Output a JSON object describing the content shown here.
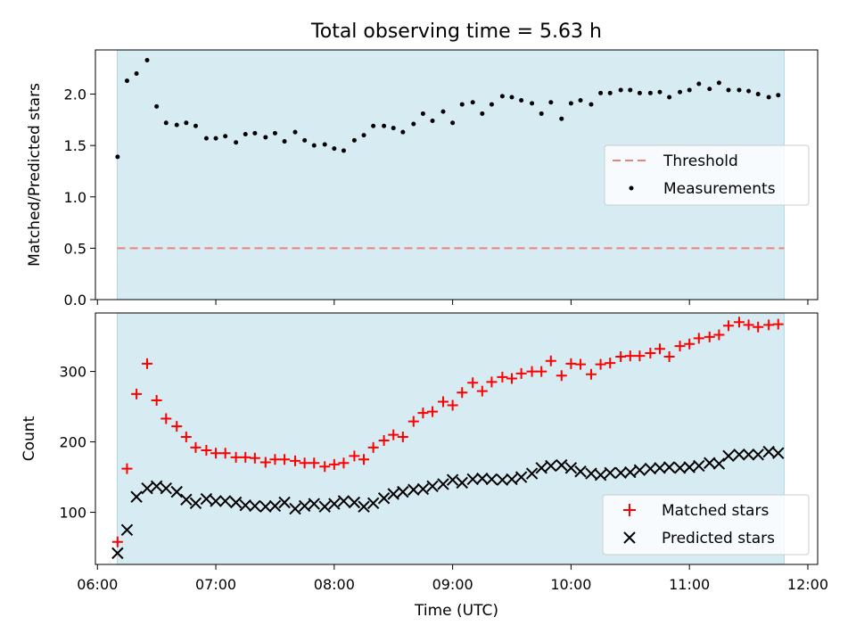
{
  "chart_data": [
    {
      "type": "scatter",
      "title": "Total observing time = 5.63 h",
      "xlabel": "",
      "ylabel": "Matched/Predicted stars",
      "ylim": [
        0,
        2.43
      ],
      "yticks": [
        "0.0",
        "0.5",
        "1.0",
        "1.5",
        "2.0"
      ],
      "ytick_values": [
        0,
        0.5,
        1.0,
        1.5,
        2.0
      ],
      "shaded_span": {
        "start": 6.167,
        "end": 11.8,
        "color": "#add8e6"
      },
      "legend_position": "center-right",
      "threshold": {
        "name": "Threshold",
        "value": 0.5,
        "color": "#f08080"
      },
      "series": [
        {
          "name": "Measurements",
          "color": "#000000",
          "marker": "dot",
          "x": [
            6.17,
            6.25,
            6.33,
            6.42,
            6.5,
            6.58,
            6.67,
            6.75,
            6.83,
            6.92,
            7.0,
            7.08,
            7.17,
            7.25,
            7.33,
            7.42,
            7.5,
            7.58,
            7.67,
            7.75,
            7.83,
            7.92,
            8.0,
            8.08,
            8.17,
            8.25,
            8.33,
            8.42,
            8.5,
            8.58,
            8.67,
            8.75,
            8.83,
            8.92,
            9.0,
            9.08,
            9.17,
            9.25,
            9.33,
            9.42,
            9.5,
            9.58,
            9.67,
            9.75,
            9.83,
            9.92,
            10.0,
            10.08,
            10.17,
            10.25,
            10.33,
            10.42,
            10.5,
            10.58,
            10.67,
            10.75,
            10.83,
            10.92,
            11.0,
            11.08,
            11.17,
            11.25,
            11.33,
            11.42,
            11.5,
            11.58,
            11.67,
            11.75
          ],
          "y": [
            1.39,
            2.13,
            2.2,
            2.33,
            1.88,
            1.72,
            1.7,
            1.72,
            1.69,
            1.57,
            1.57,
            1.59,
            1.53,
            1.61,
            1.62,
            1.58,
            1.62,
            1.54,
            1.63,
            1.55,
            1.5,
            1.51,
            1.47,
            1.45,
            1.55,
            1.6,
            1.69,
            1.69,
            1.67,
            1.63,
            1.71,
            1.81,
            1.74,
            1.83,
            1.72,
            1.9,
            1.92,
            1.81,
            1.9,
            1.98,
            1.97,
            1.94,
            1.91,
            1.81,
            1.92,
            1.76,
            1.91,
            1.94,
            1.9,
            2.01,
            2.01,
            2.04,
            2.04,
            2.01,
            2.01,
            2.02,
            1.97,
            2.02,
            2.04,
            2.1,
            2.05,
            2.11,
            2.04,
            2.04,
            2.03,
            2.0,
            1.97,
            1.99
          ]
        }
      ]
    },
    {
      "type": "scatter",
      "title": "",
      "xlabel": "Time (UTC)",
      "ylabel": "Count",
      "ylim": [
        26,
        383
      ],
      "yticks": [
        "100",
        "200",
        "300"
      ],
      "ytick_values": [
        100,
        200,
        300
      ],
      "xlim": [
        5.983,
        12.083
      ],
      "xticks": [
        "06:00",
        "07:00",
        "08:00",
        "09:00",
        "10:00",
        "11:00",
        "12:00"
      ],
      "xtick_values": [
        6,
        7,
        8,
        9,
        10,
        11,
        12
      ],
      "shaded_span": {
        "start": 6.167,
        "end": 11.8,
        "color": "#add8e6"
      },
      "legend_position": "lower-right",
      "series": [
        {
          "name": "Matched stars",
          "color": "#ff0000",
          "marker": "plus",
          "x": [
            6.17,
            6.25,
            6.33,
            6.42,
            6.5,
            6.58,
            6.67,
            6.75,
            6.83,
            6.92,
            7.0,
            7.08,
            7.17,
            7.25,
            7.33,
            7.42,
            7.5,
            7.58,
            7.67,
            7.75,
            7.83,
            7.92,
            8.0,
            8.08,
            8.17,
            8.25,
            8.33,
            8.42,
            8.5,
            8.58,
            8.67,
            8.75,
            8.83,
            8.92,
            9.0,
            9.08,
            9.17,
            9.25,
            9.33,
            9.42,
            9.5,
            9.58,
            9.67,
            9.75,
            9.83,
            9.92,
            10.0,
            10.08,
            10.17,
            10.25,
            10.33,
            10.42,
            10.5,
            10.58,
            10.67,
            10.75,
            10.83,
            10.92,
            11.0,
            11.08,
            11.17,
            11.25,
            11.33,
            11.42,
            11.5,
            11.58,
            11.67,
            11.75
          ],
          "y": [
            58,
            162,
            268,
            311,
            259,
            233,
            222,
            207,
            192,
            188,
            184,
            184,
            178,
            178,
            177,
            171,
            175,
            175,
            173,
            170,
            170,
            165,
            168,
            170,
            180,
            175,
            192,
            202,
            210,
            207,
            229,
            241,
            243,
            257,
            252,
            270,
            284,
            272,
            285,
            292,
            290,
            297,
            300,
            300,
            315,
            294,
            311,
            310,
            296,
            310,
            312,
            321,
            322,
            322,
            326,
            332,
            321,
            336,
            339,
            347,
            349,
            352,
            365,
            370,
            366,
            363,
            366,
            367
          ]
        },
        {
          "name": "Predicted stars",
          "color": "#000000",
          "marker": "x",
          "x": [
            6.17,
            6.25,
            6.33,
            6.42,
            6.5,
            6.58,
            6.67,
            6.75,
            6.83,
            6.92,
            7.0,
            7.08,
            7.17,
            7.25,
            7.33,
            7.42,
            7.5,
            7.58,
            7.67,
            7.75,
            7.83,
            7.92,
            8.0,
            8.08,
            8.17,
            8.25,
            8.33,
            8.42,
            8.5,
            8.58,
            8.67,
            8.75,
            8.83,
            8.92,
            9.0,
            9.08,
            9.17,
            9.25,
            9.33,
            9.42,
            9.5,
            9.58,
            9.67,
            9.75,
            9.83,
            9.92,
            10.0,
            10.08,
            10.17,
            10.25,
            10.33,
            10.42,
            10.5,
            10.58,
            10.67,
            10.75,
            10.83,
            10.92,
            11.0,
            11.08,
            11.17,
            11.25,
            11.33,
            11.42,
            11.5,
            11.58,
            11.67,
            11.75
          ],
          "y": [
            42,
            75,
            122,
            134,
            137,
            134,
            129,
            118,
            113,
            119,
            116,
            116,
            114,
            110,
            109,
            108,
            109,
            114,
            105,
            109,
            112,
            108,
            112,
            116,
            114,
            108,
            113,
            120,
            126,
            129,
            132,
            133,
            137,
            140,
            146,
            142,
            147,
            148,
            147,
            146,
            147,
            150,
            155,
            163,
            166,
            167,
            163,
            158,
            155,
            153,
            156,
            156,
            157,
            160,
            162,
            163,
            164,
            163,
            164,
            166,
            170,
            169,
            180,
            182,
            182,
            182,
            186,
            184
          ]
        }
      ]
    }
  ]
}
